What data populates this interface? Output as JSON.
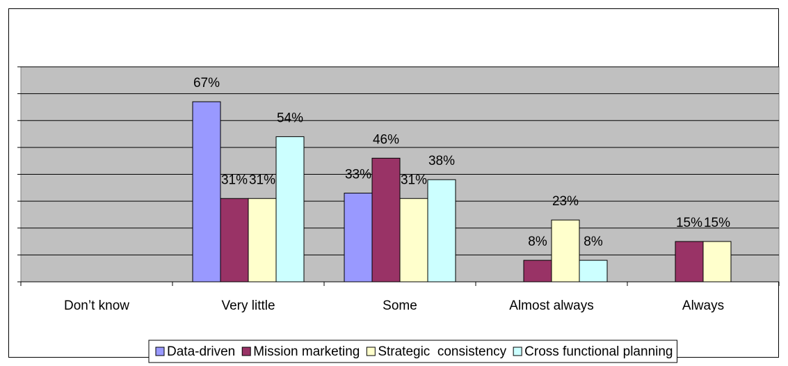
{
  "chart_data": {
    "type": "bar",
    "categories": [
      "Don’t know",
      "Very little",
      "Some",
      "Almost always",
      "Always"
    ],
    "series": [
      {
        "name": "Data-driven",
        "color": "#9999ff",
        "values": [
          null,
          67,
          33,
          null,
          null
        ],
        "value_labels": [
          null,
          "67%",
          "33%",
          null,
          null
        ]
      },
      {
        "name": "Mission marketing",
        "color": "#993366",
        "values": [
          null,
          31,
          46,
          8,
          15
        ],
        "value_labels": [
          null,
          "31%",
          "46%",
          "8%",
          "15%"
        ]
      },
      {
        "name": "Strategic  consistency",
        "color": "#ffffcc",
        "values": [
          null,
          31,
          31,
          23,
          15
        ],
        "value_labels": [
          null,
          "31%",
          "31%",
          "23%",
          "15%"
        ]
      },
      {
        "name": "Cross functional planning",
        "color": "#ccffff",
        "values": [
          null,
          54,
          38,
          8,
          null
        ],
        "value_labels": [
          null,
          "54%",
          "38%",
          "8%",
          null
        ]
      }
    ],
    "ylim": [
      0,
      80
    ],
    "yticks": [
      0,
      10,
      20,
      30,
      40,
      50,
      60,
      70,
      80
    ],
    "grid": true,
    "legend": "bottom"
  }
}
